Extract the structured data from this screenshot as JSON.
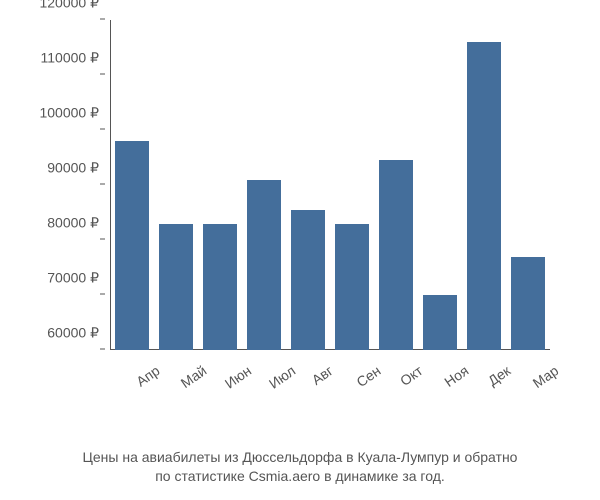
{
  "chart": {
    "type": "bar",
    "background_color": "#ffffff",
    "bar_color": "#446e9b",
    "axis_text_color": "#555555",
    "axis_line_color": "#555555",
    "currency_symbol": "₽",
    "ylim": [
      60000,
      120000
    ],
    "ytick_step": 10000,
    "yticks": [
      60000,
      70000,
      80000,
      90000,
      100000,
      110000,
      120000
    ],
    "ytick_labels": [
      "60000 ₽",
      "70000 ₽",
      "80000 ₽",
      "90000 ₽",
      "100000 ₽",
      "110000 ₽",
      "120000 ₽"
    ],
    "categories": [
      "Апр",
      "Май",
      "Июн",
      "Июл",
      "Авг",
      "Сен",
      "Окт",
      "Ноя",
      "Дек",
      "Мар"
    ],
    "values": [
      98000,
      83000,
      83000,
      91000,
      85500,
      83000,
      94500,
      70000,
      116000,
      77000
    ],
    "bar_width": 0.78,
    "label_fontsize": 14,
    "x_label_rotation": -35,
    "caption_line1": "Цены на авиабилеты из Дюссельдорфа в Куала-Лумпур и обратно",
    "caption_line2": "по статистике Csmia.aero в динамике за год.",
    "caption_fontsize": 14
  }
}
